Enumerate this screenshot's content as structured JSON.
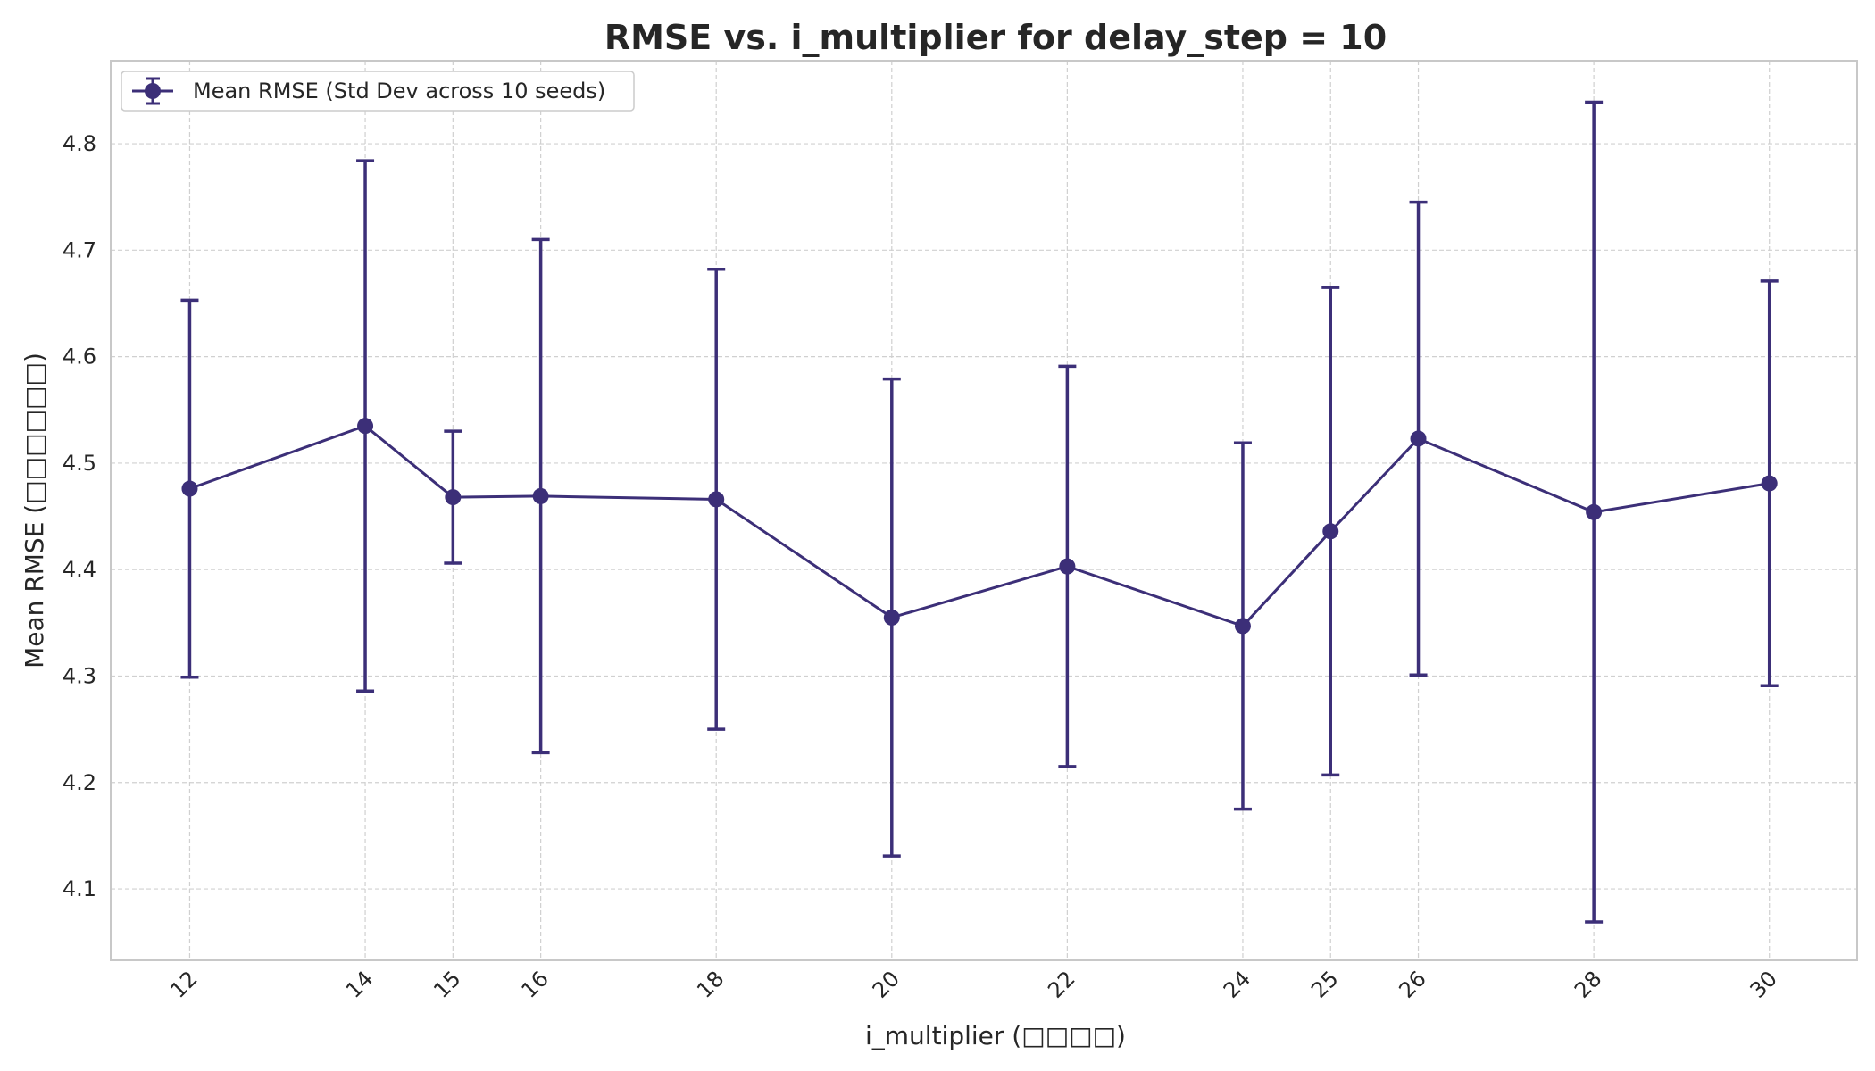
{
  "chart_data": {
    "type": "line",
    "title": "RMSE vs. i_multiplier for delay_step = 10",
    "xlabel": "i_multiplier (□□□□)",
    "ylabel": "Mean RMSE (□□□□□□)",
    "x": [
      12,
      14,
      15,
      16,
      18,
      20,
      22,
      24,
      25,
      26,
      28,
      30
    ],
    "x_tick_labels": [
      "12",
      "14",
      "15",
      "16",
      "18",
      "20",
      "22",
      "24",
      "25",
      "26",
      "28",
      "30"
    ],
    "y_ticks": [
      4.1,
      4.2,
      4.3,
      4.4,
      4.5,
      4.6,
      4.7,
      4.8
    ],
    "y_tick_labels": [
      "4.1",
      "4.2",
      "4.3",
      "4.4",
      "4.5",
      "4.6",
      "4.7",
      "4.8"
    ],
    "xlim": [
      11.1,
      31.0
    ],
    "ylim": [
      4.033,
      4.878
    ],
    "grid": true,
    "legend_position": "upper-left",
    "series": [
      {
        "name": "Mean RMSE (Std Dev across 10 seeds)",
        "color": "#3c2f78",
        "marker": "circle",
        "values": [
          4.476,
          4.535,
          4.468,
          4.469,
          4.466,
          4.355,
          4.403,
          4.347,
          4.436,
          4.523,
          4.454,
          4.481
        ],
        "error": [
          0.177,
          0.249,
          0.062,
          0.241,
          0.216,
          0.224,
          0.188,
          0.172,
          0.229,
          0.222,
          0.385,
          0.19
        ]
      }
    ]
  }
}
